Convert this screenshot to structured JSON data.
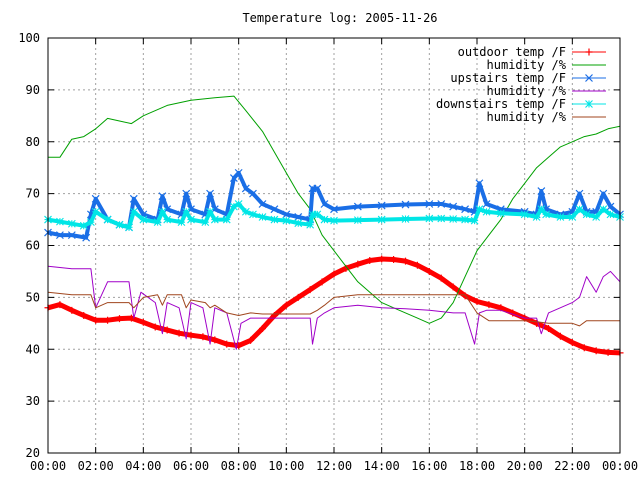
{
  "chart_data": {
    "type": "line",
    "title": "Temperature log: 2005-11-26",
    "xlabel": "",
    "ylabel": "",
    "ylim": [
      20,
      100
    ],
    "xlim": [
      0,
      24
    ],
    "x_ticks": [
      "00:00",
      "02:00",
      "04:00",
      "06:00",
      "08:00",
      "10:00",
      "12:00",
      "14:00",
      "16:00",
      "18:00",
      "20:00",
      "22:00",
      "00:00"
    ],
    "y_ticks": [
      "20",
      "30",
      "40",
      "50",
      "60",
      "70",
      "80",
      "90",
      "100"
    ],
    "grid": true,
    "legend_position": "top-right",
    "series": [
      {
        "name": "outdoor temp /F",
        "color": "#ff0000",
        "marker": "plus",
        "x": [
          0,
          0.5,
          1,
          1.5,
          2,
          2.5,
          3,
          3.5,
          4,
          4.5,
          5,
          5.5,
          6,
          6.5,
          7,
          7.5,
          8,
          8.5,
          9,
          9.5,
          10,
          10.5,
          11,
          11.5,
          12,
          12.5,
          13,
          13.5,
          14,
          14.5,
          15,
          15.5,
          16,
          16.5,
          17,
          17.5,
          18,
          18.5,
          19,
          19.5,
          20,
          20.5,
          21,
          21.5,
          22,
          22.5,
          23,
          23.5,
          24
        ],
        "y": [
          48,
          48.6,
          47.5,
          46.5,
          45.6,
          45.6,
          45.9,
          46,
          45.2,
          44.3,
          43.7,
          43.1,
          42.7,
          42.4,
          41.8,
          41,
          40.7,
          41.7,
          44,
          46.5,
          48.5,
          50,
          51.5,
          53,
          54.5,
          55.6,
          56.4,
          57.1,
          57.4,
          57.3,
          57,
          56.2,
          55,
          53.7,
          52,
          50.3,
          49.2,
          48.6,
          48,
          47,
          46,
          45,
          44,
          42.5,
          41.3,
          40.3,
          39.7,
          39.4,
          39.3
        ]
      },
      {
        "name": "humidity /%",
        "color": "#00a000",
        "marker": "none",
        "x": [
          0,
          0.5,
          1,
          1.5,
          2,
          2.5,
          3,
          3.5,
          4,
          5,
          6,
          7,
          7.8,
          8.3,
          9,
          9.5,
          10,
          10.5,
          11,
          11.5,
          12,
          12.5,
          13,
          13.5,
          14,
          14.5,
          15,
          15.5,
          16,
          16.5,
          17,
          17.5,
          18,
          18.5,
          19,
          19.5,
          20,
          20.5,
          21,
          21.5,
          22,
          22.5,
          23,
          23.5,
          24
        ],
        "y": [
          77,
          77,
          80.5,
          81,
          82.5,
          84.5,
          84,
          83.5,
          85,
          87,
          88,
          88.5,
          88.8,
          86,
          82,
          78,
          74,
          70,
          67,
          62,
          59,
          56,
          53,
          51,
          49,
          48,
          47,
          46,
          45,
          46,
          49,
          54,
          59,
          62,
          65,
          69,
          72,
          75,
          77,
          79,
          80,
          81,
          81.5,
          82.5,
          83
        ]
      },
      {
        "name": "upstairs temp /F",
        "color": "#1a6ee6",
        "marker": "cross",
        "x": [
          0,
          0.5,
          1,
          1.6,
          1.8,
          2,
          2.5,
          3,
          3.4,
          3.6,
          4,
          4.6,
          4.8,
          5,
          5.6,
          5.8,
          6,
          6.6,
          6.8,
          7,
          7.5,
          7.8,
          8,
          8.3,
          8.6,
          9,
          9.5,
          10,
          10.5,
          11,
          11.1,
          11.3,
          11.6,
          12,
          13,
          14,
          15,
          16,
          16.5,
          17,
          17.5,
          17.9,
          18.1,
          18.4,
          19,
          20,
          20.5,
          20.7,
          20.9,
          21.5,
          22,
          22.3,
          22.6,
          23,
          23.3,
          23.6,
          24
        ],
        "y": [
          62.5,
          62,
          62,
          61.5,
          66,
          69,
          65,
          64,
          63.5,
          69,
          66,
          65,
          69.5,
          67,
          66,
          70,
          67,
          66,
          70,
          67,
          66,
          73,
          74,
          71,
          70,
          68,
          67,
          66,
          65.5,
          65,
          71,
          71,
          68,
          67,
          67.5,
          67.7,
          67.9,
          68,
          68,
          67.5,
          67,
          66.5,
          72,
          68,
          67,
          66.5,
          66,
          70.5,
          67,
          66,
          66.5,
          70,
          66.5,
          66.5,
          70,
          67.5,
          66
        ]
      },
      {
        "name": "humidity /%",
        "color": "#a000c8",
        "marker": "none",
        "x": [
          0,
          1,
          1.8,
          2,
          2.5,
          3.4,
          3.6,
          3.9,
          4.5,
          4.8,
          5,
          5.5,
          5.8,
          6,
          6.5,
          6.8,
          7,
          7.5,
          7.9,
          8.1,
          8.5,
          9,
          10,
          11,
          11.1,
          11.3,
          11.6,
          12,
          13,
          14,
          15,
          16,
          17,
          17.5,
          17.9,
          18.1,
          18.4,
          19,
          20,
          20.5,
          20.7,
          21,
          22,
          22.3,
          22.6,
          23,
          23.3,
          23.6,
          24
        ],
        "y": [
          56,
          55.5,
          55.5,
          48,
          53,
          53,
          46,
          51,
          49,
          43,
          49,
          48,
          42,
          49,
          48,
          41,
          48,
          47,
          40,
          45,
          46,
          46,
          46,
          46,
          41,
          46,
          47,
          48,
          48.5,
          48,
          47.8,
          47.5,
          47,
          47,
          41,
          47,
          47.5,
          47.5,
          46,
          46,
          43,
          47,
          49,
          50,
          54,
          51,
          54,
          55,
          53
        ]
      },
      {
        "name": "downstairs temp /F",
        "color": "#00e6e6",
        "marker": "star",
        "x": [
          0,
          0.5,
          1,
          1.5,
          1.8,
          2,
          2.5,
          3,
          3.4,
          3.6,
          4,
          4.6,
          4.8,
          5,
          5.6,
          5.8,
          6,
          6.6,
          6.8,
          7,
          7.5,
          7.8,
          8,
          8.3,
          8.6,
          9,
          9.5,
          10,
          10.5,
          11,
          11.1,
          11.3,
          11.6,
          12,
          13,
          14,
          15,
          16,
          16.5,
          17,
          17.5,
          17.9,
          18.1,
          18.4,
          19,
          20,
          20.5,
          20.7,
          20.9,
          21.5,
          22,
          22.3,
          22.6,
          23,
          23.3,
          23.6,
          24
        ],
        "y": [
          65,
          64.6,
          64.2,
          63.8,
          64.5,
          66.5,
          65,
          64,
          63.5,
          66.5,
          65,
          64.5,
          66.5,
          65,
          64.5,
          66.5,
          65,
          64.5,
          66.5,
          65,
          65,
          67.5,
          68,
          66.5,
          66,
          65.5,
          65,
          64.8,
          64.3,
          64,
          66,
          66,
          65,
          64.8,
          64.9,
          65,
          65.1,
          65.2,
          65.2,
          65.1,
          65,
          64.8,
          67,
          66.5,
          66.2,
          66,
          65.5,
          67,
          66,
          65.5,
          65.5,
          67,
          66,
          65.5,
          67,
          66,
          65.5
        ]
      },
      {
        "name": "humidity /%",
        "color": "#a0461e",
        "marker": "none",
        "x": [
          0,
          1,
          1.8,
          2,
          2.5,
          3.4,
          3.6,
          4,
          4.6,
          4.8,
          5,
          5.6,
          5.8,
          6,
          6.6,
          6.8,
          7,
          7.5,
          8,
          8.5,
          9,
          10,
          11,
          11.3,
          11.6,
          12,
          13,
          14,
          15,
          16,
          17,
          17.5,
          18,
          18.5,
          19,
          20,
          20.5,
          21,
          22,
          22.3,
          22.6,
          23,
          23.5,
          24
        ],
        "y": [
          51,
          50.5,
          50.5,
          48,
          49,
          49,
          48,
          50,
          50.5,
          48.5,
          50.5,
          50.5,
          48,
          49.5,
          49,
          48,
          48.5,
          47,
          46.5,
          47,
          46.8,
          46.8,
          46.8,
          47.5,
          48.5,
          50,
          50.5,
          50.5,
          50.5,
          50.5,
          50.5,
          50.5,
          47,
          45.5,
          45.5,
          45.5,
          45.3,
          45,
          45,
          44.5,
          45.5,
          45.5,
          45.5,
          45.5
        ]
      }
    ]
  }
}
